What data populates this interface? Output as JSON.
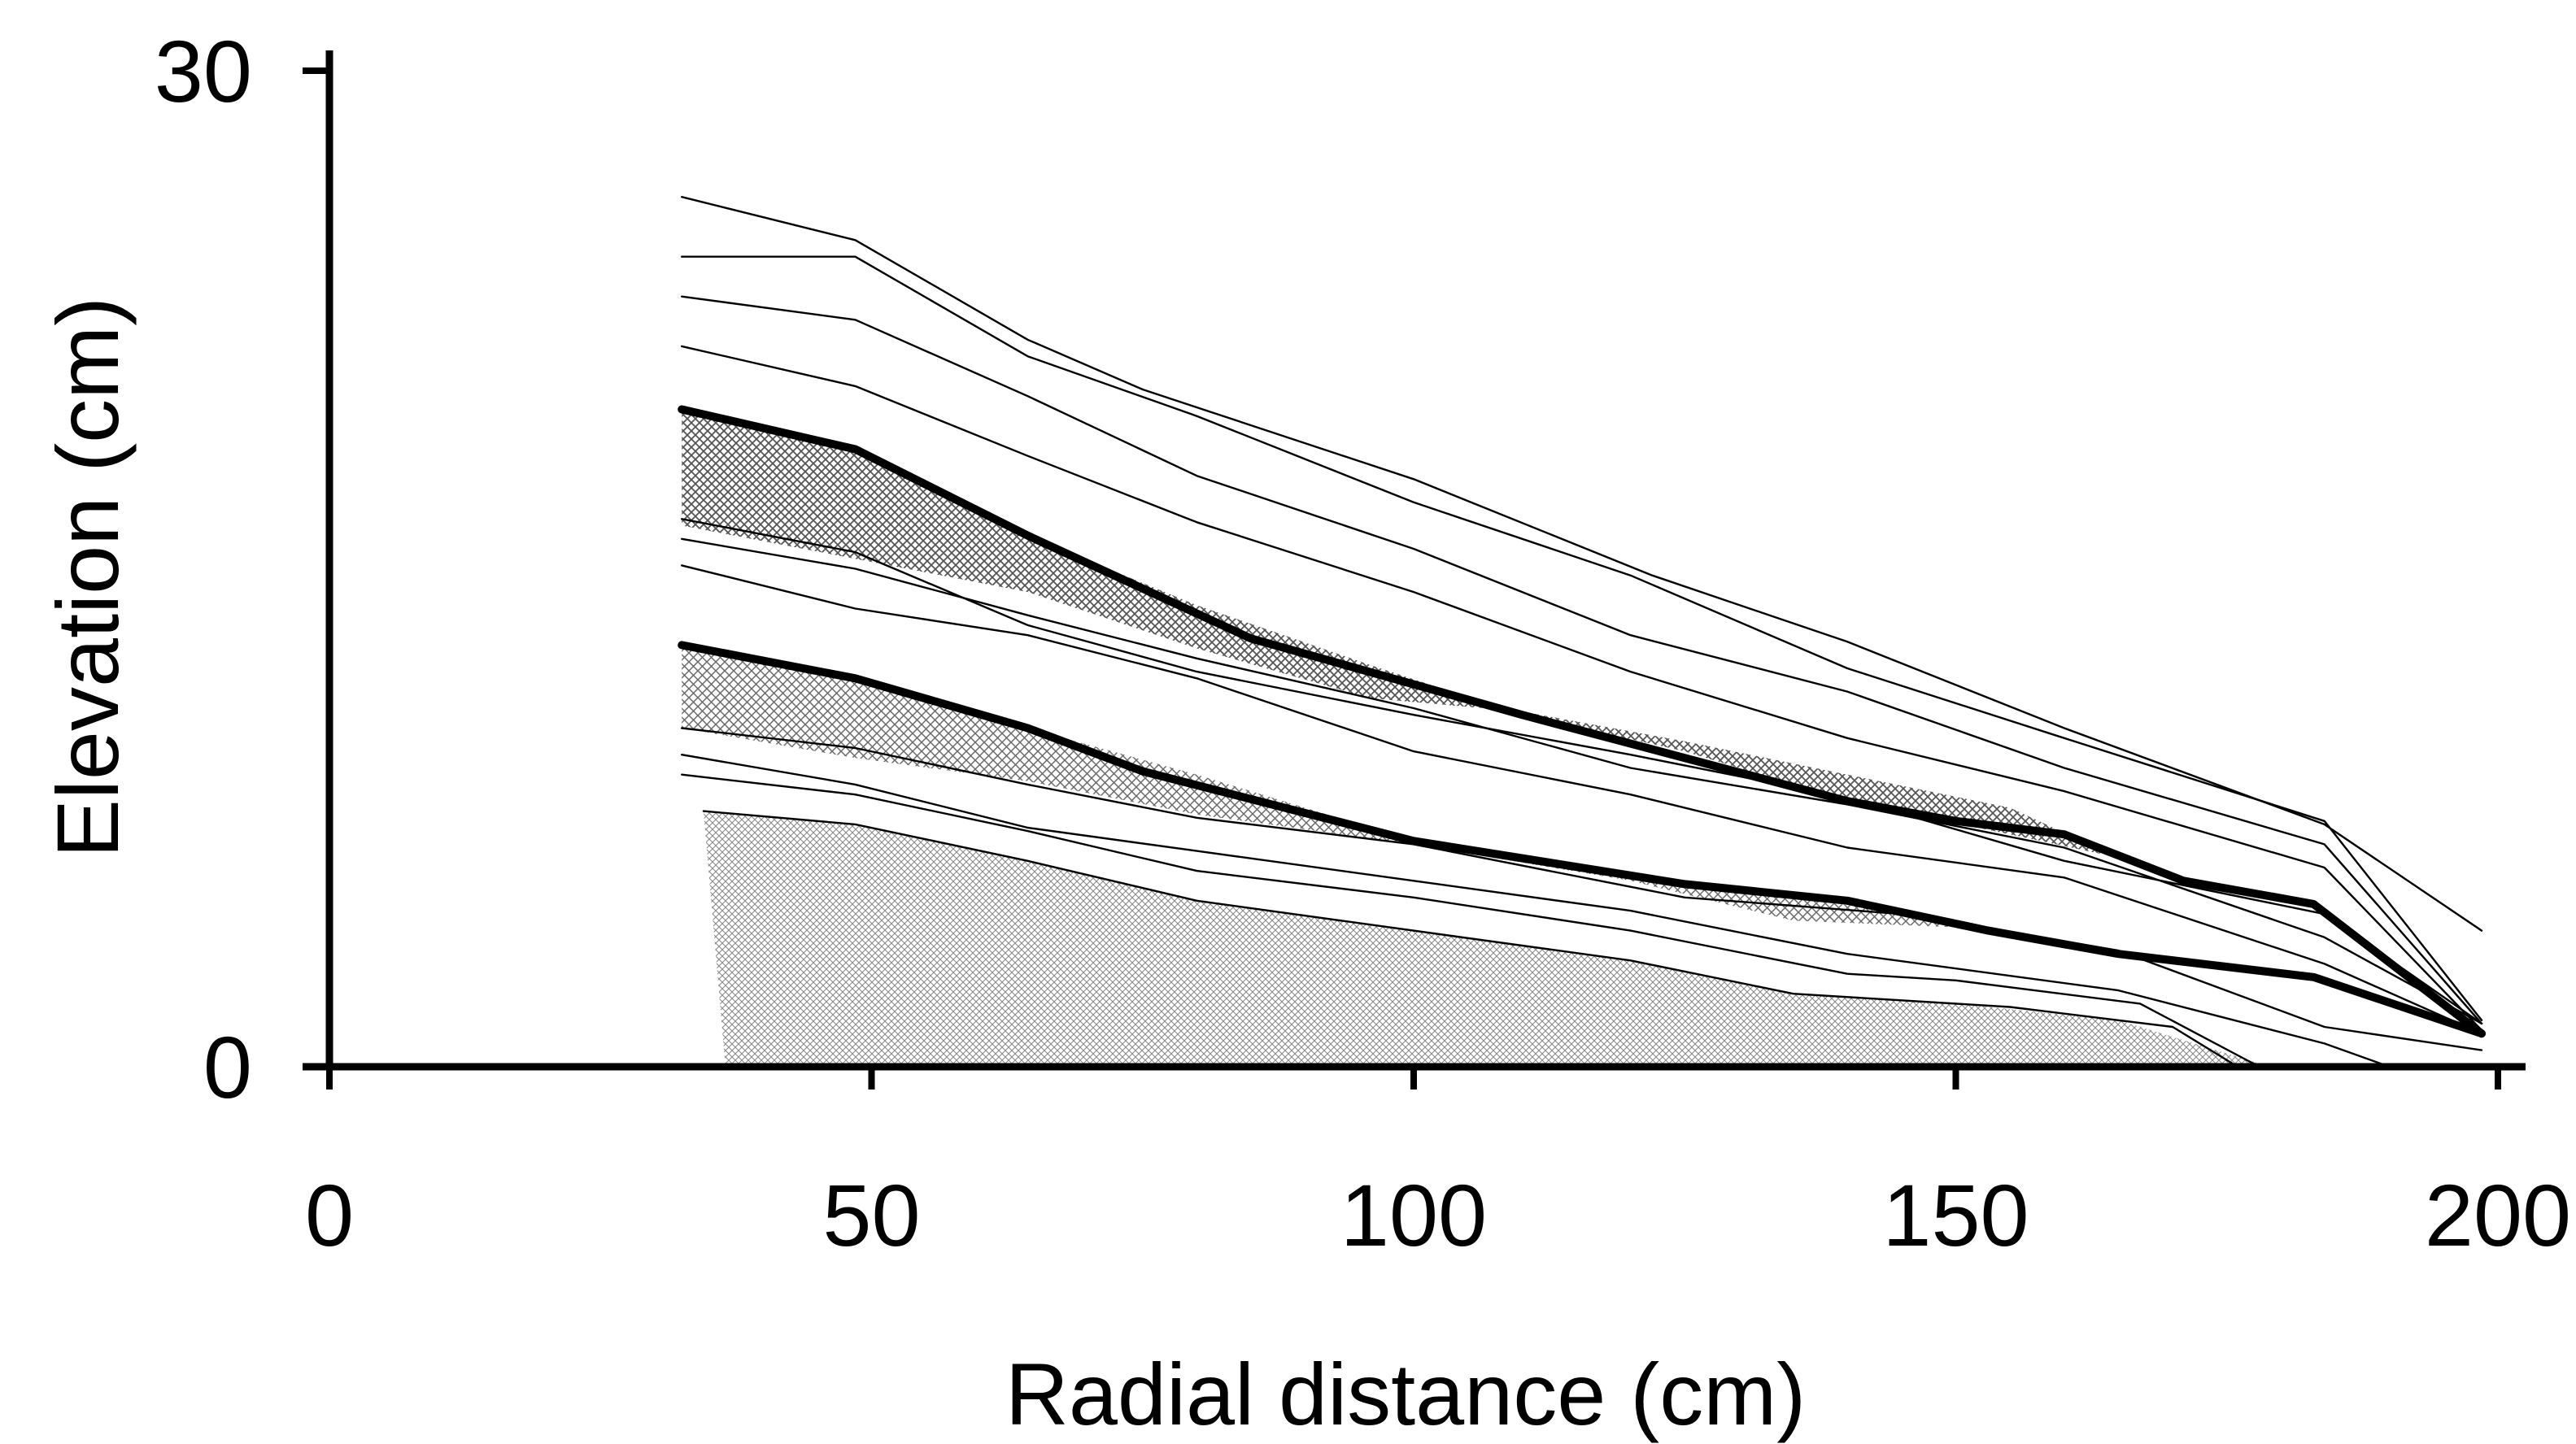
{
  "chart_data": {
    "type": "line",
    "title": "",
    "xlabel": "Radial distance (cm)",
    "ylabel": "Elevation (cm)",
    "xlim": [
      0,
      200
    ],
    "ylim": [
      0,
      30
    ],
    "x_ticks": [
      0,
      50,
      100,
      150,
      200
    ],
    "x_tick_labels": [
      "0",
      "50",
      "100",
      "150",
      "200"
    ],
    "y_ticks": [
      0,
      30
    ],
    "y_tick_labels": [
      "0",
      "30"
    ],
    "grid": false,
    "legend": "none",
    "shaded_regions": [
      {
        "pattern": "dense-crosshatch",
        "upper": [
          [
            32.5,
            19.8
          ],
          [
            48.5,
            18.6
          ],
          [
            64.4,
            16.0
          ],
          [
            80,
            13.9
          ],
          [
            96,
            12.1
          ],
          [
            110,
            10.6
          ],
          [
            125,
            9.5
          ],
          [
            140,
            8.0
          ],
          [
            155,
            7.0
          ],
          [
            165,
            6.3
          ]
        ],
        "lower": [
          [
            32.5,
            16.3
          ],
          [
            48.5,
            15.3
          ],
          [
            64.4,
            14.3
          ],
          [
            80,
            12.6
          ],
          [
            96,
            11.1
          ],
          [
            110,
            10.7
          ],
          [
            125,
            9.8
          ],
          [
            140,
            8.8
          ],
          [
            155,
            7.8
          ],
          [
            165,
            6.3
          ]
        ]
      },
      {
        "pattern": "medium-crosshatch",
        "upper": [
          [
            32.5,
            12.7
          ],
          [
            48.5,
            11.7
          ],
          [
            64.4,
            10.2
          ],
          [
            80,
            8.8
          ],
          [
            100,
            6.8
          ],
          [
            120,
            5.7
          ],
          [
            135,
            5.1
          ],
          [
            150,
            4.4
          ],
          [
            155,
            4.1
          ]
        ],
        "lower": [
          [
            32.5,
            10.2
          ],
          [
            48.5,
            9.3
          ],
          [
            64.4,
            8.6
          ],
          [
            80,
            7.6
          ],
          [
            100,
            6.7
          ],
          [
            120,
            5.6
          ],
          [
            135,
            4.4
          ],
          [
            150,
            4.2
          ],
          [
            155,
            4.1
          ]
        ]
      },
      {
        "pattern": "fine-crosshatch",
        "upper": [
          [
            34.5,
            7.7
          ],
          [
            48.5,
            7.3
          ],
          [
            64.4,
            6.2
          ],
          [
            80,
            5.0
          ],
          [
            100,
            4.1
          ],
          [
            120,
            3.2
          ],
          [
            135,
            2.2
          ],
          [
            150,
            1.9
          ],
          [
            165,
            1.4
          ],
          [
            178,
            0.1
          ]
        ],
        "lower": [
          [
            36.5,
            0.1
          ],
          [
            178,
            0.1
          ]
        ]
      }
    ],
    "series": [
      {
        "weight": "thin",
        "x": [
          32.5,
          48.5,
          64.4,
          75,
          100,
          122,
          140,
          160,
          184,
          198.5
        ],
        "y": [
          26.2,
          24.9,
          21.9,
          20.4,
          17.7,
          14.8,
          12.8,
          10.2,
          7.3,
          4.1
        ]
      },
      {
        "weight": "thin",
        "x": [
          32.5,
          48.5,
          64.4,
          80,
          100,
          120,
          140,
          160,
          184,
          198.5
        ],
        "y": [
          24.4,
          24.4,
          21.4,
          19.6,
          17.0,
          14.8,
          12.0,
          9.9,
          7.4,
          1.4
        ]
      },
      {
        "weight": "thin",
        "x": [
          32.5,
          48.5,
          64.4,
          80,
          100,
          120,
          140,
          160,
          184,
          198.5
        ],
        "y": [
          23.2,
          22.5,
          20.2,
          17.8,
          15.6,
          13.0,
          11.3,
          9.0,
          6.7,
          1.3
        ]
      },
      {
        "weight": "thin",
        "x": [
          32.5,
          48.5,
          64.4,
          80,
          100,
          120,
          140,
          160,
          184,
          198.5
        ],
        "y": [
          21.7,
          20.5,
          18.4,
          16.4,
          14.3,
          11.9,
          9.9,
          8.3,
          6.0,
          1.1
        ]
      },
      {
        "weight": "thick",
        "x": [
          32.5,
          48.5,
          64.4,
          85,
          110,
          140,
          150,
          160,
          171,
          183,
          198.5
        ],
        "y": [
          19.8,
          18.6,
          16.0,
          12.9,
          10.6,
          8.0,
          7.4,
          7.0,
          5.6,
          4.9,
          1.0
        ]
      },
      {
        "weight": "thin",
        "x": [
          32.5,
          48.5,
          64.4,
          80,
          100,
          120,
          140,
          160,
          184,
          198.5
        ],
        "y": [
          16.5,
          15.5,
          13.3,
          11.9,
          10.6,
          9.4,
          8.1,
          6.2,
          4.6,
          1.3
        ]
      },
      {
        "weight": "thin",
        "x": [
          32.5,
          48.5,
          64.4,
          80,
          100,
          120,
          140,
          160,
          184,
          198.5
        ],
        "y": [
          15.9,
          15.0,
          13.6,
          12.3,
          10.8,
          9.0,
          7.9,
          6.6,
          3.9,
          1.3
        ]
      },
      {
        "weight": "thin",
        "x": [
          32.5,
          48.5,
          64.4,
          80,
          100,
          120,
          140,
          160,
          184,
          198.5
        ],
        "y": [
          15.1,
          13.8,
          13.0,
          11.7,
          9.5,
          8.2,
          6.6,
          5.7,
          3.1,
          1.0
        ]
      },
      {
        "weight": "thick",
        "x": [
          32.5,
          48.5,
          64.4,
          75,
          100,
          125,
          140,
          153,
          165,
          183,
          198.5
        ],
        "y": [
          12.7,
          11.7,
          10.2,
          8.9,
          6.8,
          5.5,
          5.0,
          4.1,
          3.4,
          2.7,
          1.0
        ]
      },
      {
        "weight": "thin",
        "x": [
          32.5,
          48.5,
          64.4,
          80,
          100,
          125,
          145,
          165,
          184,
          198.5
        ],
        "y": [
          10.2,
          9.6,
          8.5,
          7.5,
          6.7,
          5.1,
          4.6,
          3.5,
          1.2,
          0.5
        ]
      },
      {
        "weight": "thin",
        "x": [
          32.5,
          48.5,
          64.4,
          80,
          100,
          120,
          140,
          165,
          184,
          190
        ],
        "y": [
          9.4,
          8.5,
          7.2,
          6.5,
          5.6,
          4.7,
          3.4,
          2.3,
          0.7,
          0.0
        ]
      },
      {
        "weight": "thin",
        "x": [
          32.5,
          48.5,
          64.4,
          80,
          100,
          120,
          140,
          150,
          167,
          178
        ],
        "y": [
          8.8,
          8.2,
          7.1,
          5.9,
          5.1,
          4.1,
          2.8,
          2.6,
          1.9,
          0.0
        ]
      },
      {
        "weight": "thin",
        "x": [
          34.5,
          48.5,
          64.4,
          80,
          100,
          120,
          135,
          155,
          170,
          176
        ],
        "y": [
          7.7,
          7.3,
          6.2,
          5.0,
          4.1,
          3.2,
          2.2,
          1.8,
          1.2,
          0.0
        ]
      }
    ]
  }
}
